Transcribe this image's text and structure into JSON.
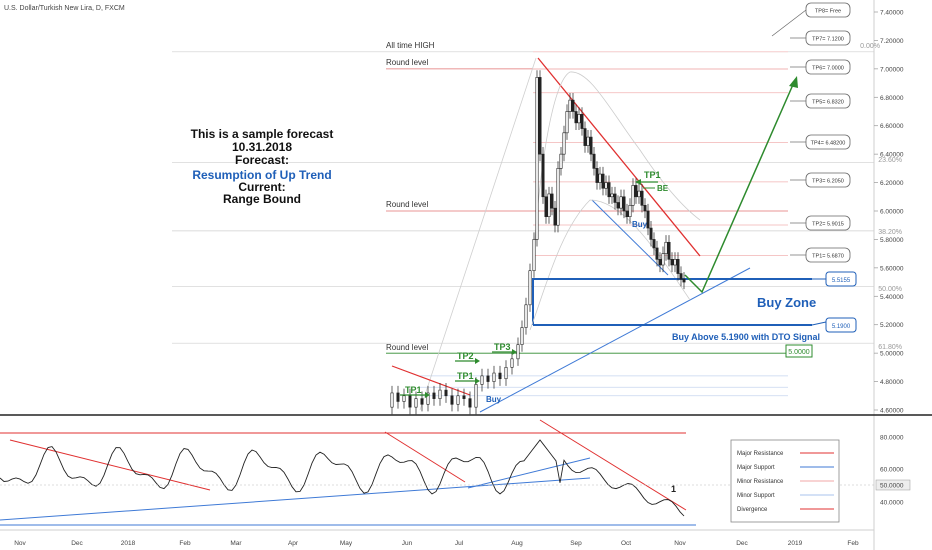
{
  "header": {
    "symbol_title": "U.S. Dollar/Turkish New Lira, D, FXCM"
  },
  "forecast_box": {
    "line1": "This is a sample forecast",
    "line2": "10.31.2018",
    "line3": "Forecast:",
    "line4": "Resumption of Up Trend",
    "line5": "Current:",
    "line6": "Range Bound"
  },
  "labels": {
    "all_time_high": "All time HIGH",
    "round_level": "Round level",
    "buy_zone": "Buy Zone",
    "buy_above": "Buy Above 5.1900 with DTO Signal",
    "be": "BE",
    "buy": "Buy",
    "divergence_marker": "1"
  },
  "tp_labels": {
    "tp1_upper": "TP1",
    "tp1_a": "TP1",
    "tp1_b": "TP1",
    "tp2": "TP2",
    "tp3": "TP3"
  },
  "targets": [
    "TP8= Free",
    "TP7= 7.1200",
    "TP6= 7.0000",
    "TP5= 6.8320",
    "TP4= 6.48200",
    "TP3= 6.2050",
    "TP2= 5.9015",
    "TP1= 5.6870"
  ],
  "zone_callouts": {
    "upper": "5.5155",
    "lower": "5.1900",
    "support_label": "5.0000"
  },
  "fib_labels": {
    "f0": "0.00%",
    "f236": "23.60%",
    "f382": "38.20%",
    "f50": "50.00%",
    "f618": "61.80%"
  },
  "price_axis": [
    "7.40000",
    "7.20000",
    "7.00000",
    "6.80000",
    "6.60000",
    "6.40000",
    "6.20000",
    "6.00000",
    "5.80000",
    "5.60000",
    "5.40000",
    "5.20000",
    "5.00000",
    "4.80000",
    "4.60000"
  ],
  "osc_axis": [
    "80.0000",
    "60.0000",
    "50.0000",
    "40.0000"
  ],
  "time_axis": [
    "Nov",
    "Dec",
    "2018",
    "Feb",
    "Mar",
    "Apr",
    "May",
    "Jun",
    "Jul",
    "Aug",
    "Sep",
    "Oct",
    "Nov",
    "Dec",
    "2019",
    "Feb"
  ],
  "legend": [
    "Major Resistance",
    "Major Support",
    "Minor Resistance",
    "Minor Support",
    "Divergence"
  ],
  "colors": {
    "up_arrow": "#2e8b2e",
    "tp_green": "#2e8b2e",
    "blue_text": "#1f5fb8",
    "zone_line": "#1f5fb8",
    "resistance": "#e03030",
    "support": "#3f7ad6",
    "fib_line": "#f2a7a7",
    "round_line": "#d9534f"
  },
  "chart_data": [
    {
      "type": "candlestick",
      "title": "U.S. Dollar/Turkish New Lira, D, FXCM",
      "y_range": [
        4.6,
        7.4
      ],
      "key_levels": {
        "all_time_high": 7.12,
        "round_level_top": 7.0,
        "round_level_mid": 6.0,
        "round_level_low": 5.0,
        "buy_zone_top": 5.5155,
        "buy_zone_bottom": 5.19
      },
      "targets": [
        {
          "name": "TP1",
          "value": 5.687
        },
        {
          "name": "TP2",
          "value": 5.9015
        },
        {
          "name": "TP3",
          "value": 6.205
        },
        {
          "name": "TP4",
          "value": 6.482
        },
        {
          "name": "TP5",
          "value": 6.832
        },
        {
          "name": "TP6",
          "value": 7.0
        },
        {
          "name": "TP7",
          "value": 7.12
        }
      ],
      "fibonacci": [
        {
          "level": "0.00%",
          "value": 7.12
        },
        {
          "level": "23.60%",
          "value": 6.34
        },
        {
          "level": "38.20%",
          "value": 5.86
        },
        {
          "level": "50.00%",
          "value": 5.47
        },
        {
          "level": "61.80%",
          "value": 5.07
        }
      ]
    },
    {
      "type": "line",
      "title": "",
      "y_range": [
        30,
        90
      ],
      "levels": [
        80,
        60,
        50,
        40
      ]
    }
  ]
}
